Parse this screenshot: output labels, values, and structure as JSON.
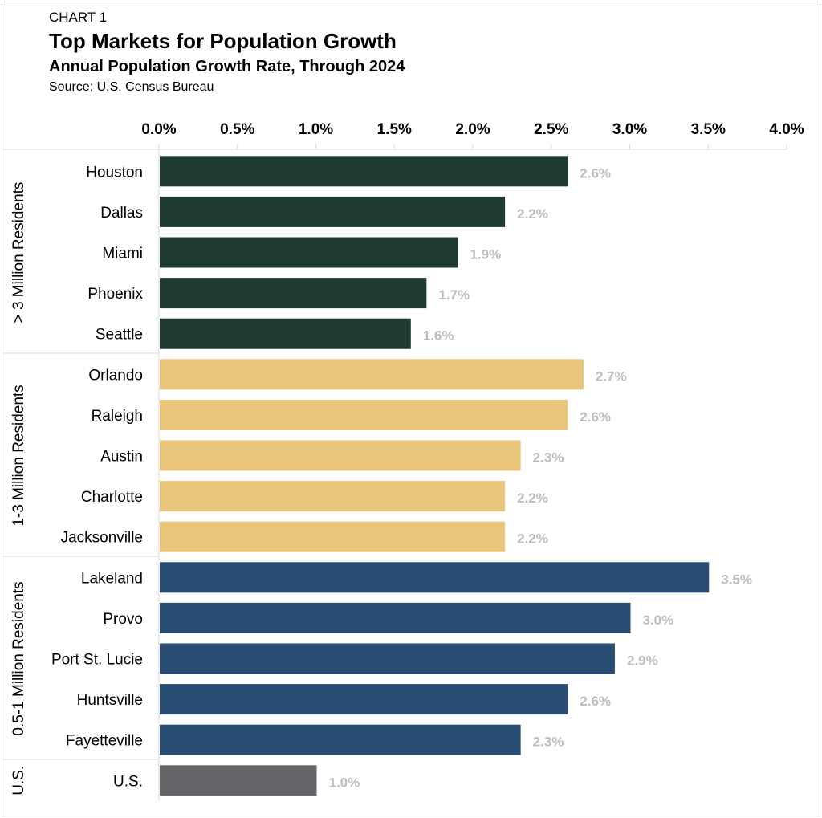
{
  "header": {
    "label": "CHART 1",
    "title": "Top Markets for Population Growth",
    "subtitle": "Annual Population Growth Rate, Through 2024",
    "source": "Source: U.S. Census Bureau"
  },
  "chart_data": {
    "type": "bar",
    "orientation": "horizontal",
    "title": "Top Markets for Population Growth",
    "subtitle": "Annual Population Growth Rate, Through 2024",
    "xlim": [
      0,
      4.0
    ],
    "x_ticks": [
      "0.0%",
      "0.5%",
      "1.0%",
      "1.5%",
      "2.0%",
      "2.5%",
      "3.0%",
      "3.5%",
      "4.0%"
    ],
    "x_tick_values": [
      0,
      0.5,
      1.0,
      1.5,
      2.0,
      2.5,
      3.0,
      3.5,
      4.0
    ],
    "axis_position": "top",
    "grid": false,
    "groups": [
      {
        "name": "> 3 Million Residents",
        "color": "#1e3a32",
        "items": [
          {
            "label": "Houston",
            "value": 2.6,
            "display": "2.6%"
          },
          {
            "label": "Dallas",
            "value": 2.2,
            "display": "2.2%"
          },
          {
            "label": "Miami",
            "value": 1.9,
            "display": "1.9%"
          },
          {
            "label": "Phoenix",
            "value": 1.7,
            "display": "1.7%"
          },
          {
            "label": "Seattle",
            "value": 1.6,
            "display": "1.6%"
          }
        ]
      },
      {
        "name": "1-3 Million Residents",
        "color": "#e9c47b",
        "items": [
          {
            "label": "Orlando",
            "value": 2.7,
            "display": "2.7%"
          },
          {
            "label": "Raleigh",
            "value": 2.6,
            "display": "2.6%"
          },
          {
            "label": "Austin",
            "value": 2.3,
            "display": "2.3%"
          },
          {
            "label": "Charlotte",
            "value": 2.2,
            "display": "2.2%"
          },
          {
            "label": "Jacksonville",
            "value": 2.2,
            "display": "2.2%"
          }
        ]
      },
      {
        "name": "0.5-1 Million Residents",
        "color": "#294d72",
        "items": [
          {
            "label": "Lakeland",
            "value": 3.5,
            "display": "3.5%"
          },
          {
            "label": "Provo",
            "value": 3.0,
            "display": "3.0%"
          },
          {
            "label": "Port St. Lucie",
            "value": 2.9,
            "display": "2.9%"
          },
          {
            "label": "Huntsville",
            "value": 2.6,
            "display": "2.6%"
          },
          {
            "label": "Fayetteville",
            "value": 2.3,
            "display": "2.3%"
          }
        ]
      },
      {
        "name": "U.S.",
        "color": "#646569",
        "items": [
          {
            "label": "U.S.",
            "value": 1.0,
            "display": "1.0%"
          }
        ]
      }
    ]
  }
}
